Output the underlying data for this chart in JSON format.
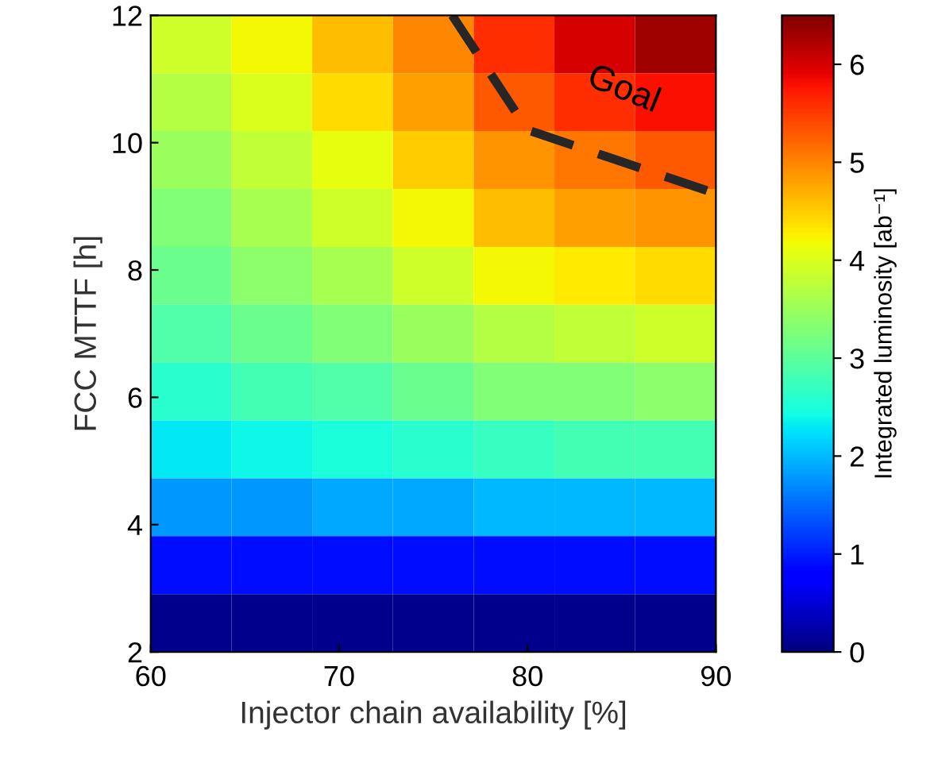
{
  "chart_data": {
    "type": "heatmap",
    "xlabel": "Injector chain availability [%]",
    "ylabel": "FCC MTTF [h]",
    "clabel": "Integrated luminosity [ab⁻¹]",
    "xlim": [
      60,
      90
    ],
    "ylim": [
      2,
      12
    ],
    "xticks": [
      60,
      70,
      80,
      90
    ],
    "yticks": [
      2,
      4,
      6,
      8,
      10,
      12
    ],
    "clim": [
      0,
      6.5
    ],
    "cticks": [
      0,
      1,
      2,
      3,
      4,
      5,
      6
    ],
    "cells": [
      [
        3.9,
        4.2,
        4.6,
        5.0,
        5.6,
        6.0,
        6.3
      ],
      [
        3.7,
        4.0,
        4.4,
        4.8,
        5.3,
        5.6,
        5.8
      ],
      [
        3.5,
        3.8,
        4.1,
        4.5,
        4.9,
        5.1,
        5.3
      ],
      [
        3.3,
        3.6,
        3.9,
        4.2,
        4.6,
        4.8,
        4.9
      ],
      [
        3.1,
        3.4,
        3.6,
        3.9,
        4.2,
        4.3,
        4.4
      ],
      [
        2.9,
        3.1,
        3.3,
        3.5,
        3.7,
        3.8,
        3.9
      ],
      [
        2.6,
        2.8,
        2.9,
        3.1,
        3.3,
        3.3,
        3.4
      ],
      [
        2.3,
        2.4,
        2.5,
        2.6,
        2.7,
        2.8,
        2.8
      ],
      [
        1.8,
        1.8,
        1.9,
        1.9,
        2.0,
        2.0,
        2.0
      ],
      [
        0.9,
        0.9,
        0.9,
        0.9,
        0.9,
        0.9,
        0.9
      ],
      [
        0.1,
        0.1,
        0.1,
        0.1,
        0.1,
        0.1,
        0.1
      ]
    ],
    "series": [
      {
        "type": "line",
        "name": "Goal",
        "x": [
          76,
          80,
          90
        ],
        "values": [
          12,
          10.2,
          9.2
        ],
        "color": "#262626",
        "line_style": "dashed"
      }
    ]
  }
}
